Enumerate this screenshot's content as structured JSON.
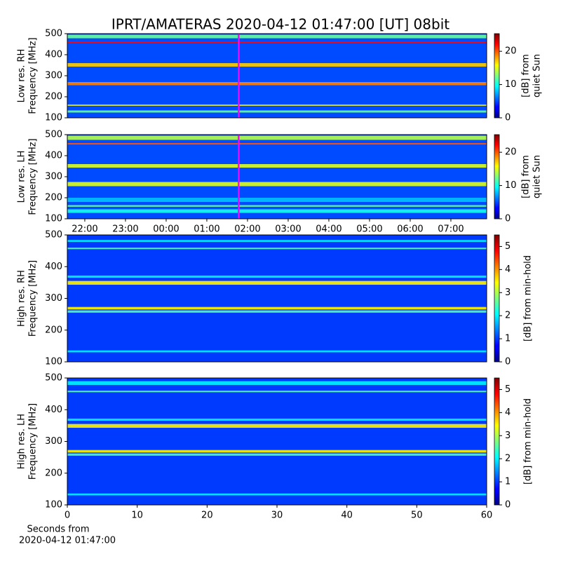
{
  "title": "IPRT/AMATERAS 2020-04-12 01:47:00 [UT]   08bit",
  "chart_data": [
    {
      "type": "spectrogram",
      "ylabel": [
        "Low res. RH",
        "Frequency [MHz]"
      ],
      "xlim": [
        21.57,
        31.88
      ],
      "ylim": [
        100,
        500
      ],
      "yticks": [
        100,
        200,
        300,
        400,
        500
      ],
      "background": 5,
      "marker": {
        "x": 25.783,
        "color": "#ff00ff"
      },
      "bands": [
        {
          "freq": [
            125,
            135
          ],
          "level": 12
        },
        {
          "freq": [
            157,
            163
          ],
          "level": 16
        },
        {
          "freq": [
            255,
            270
          ],
          "level": 19
        },
        {
          "freq": [
            343,
            360
          ],
          "level": 17
        },
        {
          "freq": [
            456,
            463
          ],
          "level": 22
        },
        {
          "freq": [
            478,
            495
          ],
          "level": 12
        }
      ],
      "colorbar": {
        "label": [
          "[dB] from",
          "quiet Sun"
        ],
        "clim": [
          0,
          25.3
        ],
        "ticks": [
          0,
          10,
          20
        ]
      }
    },
    {
      "type": "spectrogram",
      "ylabel": [
        "Low res. LH",
        "Frequency [MHz]"
      ],
      "xlim": [
        21.57,
        31.88
      ],
      "ylim": [
        100,
        500
      ],
      "yticks": [
        100,
        200,
        300,
        400,
        500
      ],
      "xticks": [
        {
          "value": 22,
          "label": "22:00"
        },
        {
          "value": 23,
          "label": "23:00"
        },
        {
          "value": 24,
          "label": "00:00"
        },
        {
          "value": 25,
          "label": "01:00"
        },
        {
          "value": 26,
          "label": "02:00"
        },
        {
          "value": 27,
          "label": "03:00"
        },
        {
          "value": 28,
          "label": "04:00"
        },
        {
          "value": 29,
          "label": "05:00"
        },
        {
          "value": 30,
          "label": "06:00"
        },
        {
          "value": 31,
          "label": "07:00"
        }
      ],
      "background": 5,
      "marker": {
        "x": 25.783,
        "color": "#ff00ff"
      },
      "bands": [
        {
          "freq": [
            128,
            145
          ],
          "level": 10
        },
        {
          "freq": [
            157,
            165
          ],
          "level": 12
        },
        {
          "freq": [
            180,
            200
          ],
          "level": 8
        },
        {
          "freq": [
            255,
            275
          ],
          "level": 15
        },
        {
          "freq": [
            343,
            360
          ],
          "level": 15
        },
        {
          "freq": [
            453,
            460
          ],
          "level": 20
        },
        {
          "freq": [
            475,
            495
          ],
          "level": 14
        }
      ],
      "colorbar": {
        "label": [
          "[dB] from",
          "quiet Sun"
        ],
        "clim": [
          0,
          25.3
        ],
        "ticks": [
          0,
          10,
          20
        ]
      }
    },
    {
      "type": "spectrogram",
      "ylabel": [
        "High res. RH",
        "Frequency [MHz]"
      ],
      "xlim": [
        0,
        60
      ],
      "ylim": [
        100,
        500
      ],
      "yticks": [
        100,
        200,
        300,
        400,
        500
      ],
      "background": 1,
      "bands": [
        {
          "freq": [
            130,
            136
          ],
          "level": 2
        },
        {
          "freq": [
            255,
            262
          ],
          "level": 2.5
        },
        {
          "freq": [
            265,
            273
          ],
          "level": 3.5
        },
        {
          "freq": [
            343,
            355
          ],
          "level": 3.5
        },
        {
          "freq": [
            365,
            372
          ],
          "level": 2
        },
        {
          "freq": [
            455,
            460
          ],
          "level": 2.5
        },
        {
          "freq": [
            478,
            484
          ],
          "level": 2
        }
      ],
      "colorbar": {
        "label": [
          "[dB] from min-hold"
        ],
        "clim": [
          0,
          5.5
        ],
        "ticks": [
          0,
          1,
          2,
          3,
          4,
          5
        ]
      }
    },
    {
      "type": "spectrogram",
      "ylabel": [
        "High res. LH",
        "Frequency [MHz]"
      ],
      "xlim": [
        0,
        60
      ],
      "ylim": [
        100,
        500
      ],
      "yticks": [
        100,
        200,
        300,
        400,
        500
      ],
      "xticks": [
        0,
        10,
        20,
        30,
        40,
        50,
        60
      ],
      "xlabel": [
        "Seconds from",
        "2020-04-12 01:47:00"
      ],
      "background": 1,
      "bands": [
        {
          "freq": [
            130,
            136
          ],
          "level": 2
        },
        {
          "freq": [
            255,
            262
          ],
          "level": 2.5
        },
        {
          "freq": [
            265,
            273
          ],
          "level": 3.5
        },
        {
          "freq": [
            343,
            355
          ],
          "level": 3.5
        },
        {
          "freq": [
            365,
            372
          ],
          "level": 2
        },
        {
          "freq": [
            455,
            460
          ],
          "level": 2.5
        },
        {
          "freq": [
            478,
            490
          ],
          "level": 2
        }
      ],
      "colorbar": {
        "label": [
          "[dB] from min-hold"
        ],
        "clim": [
          0,
          5.5
        ],
        "ticks": [
          0,
          1,
          2,
          3,
          4,
          5
        ]
      }
    }
  ]
}
